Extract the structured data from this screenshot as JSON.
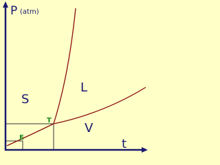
{
  "labels": {
    "y_axis": "P",
    "y_unit": "(atm)",
    "x_axis": "t",
    "solid": "S",
    "liquid": "L",
    "vapor": "V",
    "triple_point": "T",
    "point_e": "E"
  }
}
